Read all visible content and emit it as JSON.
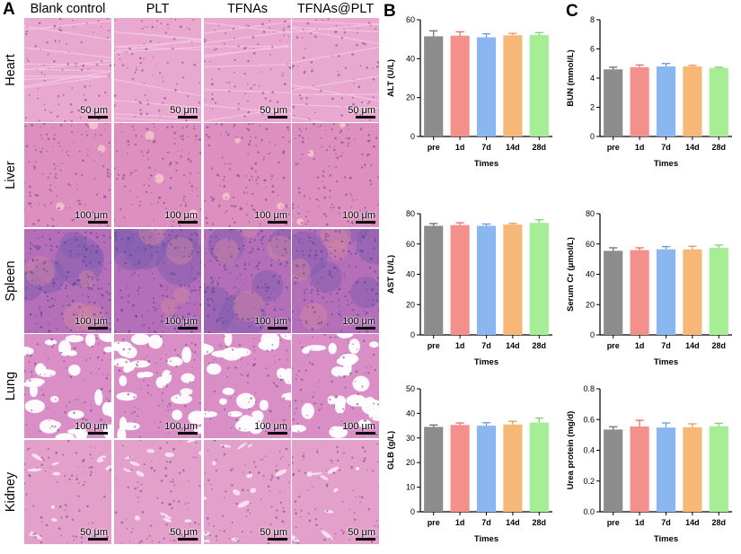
{
  "panels": {
    "a": "A",
    "b": "B",
    "c": "C"
  },
  "histology": {
    "columns": [
      "Blank control",
      "PLT",
      "TFNAs",
      "TFNAs@PLT"
    ],
    "rows": [
      {
        "label": "Heart",
        "scale": "50 μm",
        "tissue": "heart",
        "color": "#e9a8cf"
      },
      {
        "label": "Liver",
        "scale": "100 μm",
        "tissue": "liver",
        "color": "#dd8fc0"
      },
      {
        "label": "Spleen",
        "scale": "100 μm",
        "tissue": "spleen",
        "color": "#b46fb8"
      },
      {
        "label": "Lung",
        "scale": "100 μm",
        "tissue": "lung",
        "color": "#d98fc6"
      },
      {
        "label": "Kidney",
        "scale": "50 μm",
        "tissue": "kidney",
        "color": "#e3a0cb"
      }
    ]
  },
  "chart_data": [
    {
      "id": "alt",
      "type": "bar",
      "title": "",
      "xlabel": "Times",
      "ylabel": "ALT (U/L)",
      "categories": [
        "pre",
        "1d",
        "7d",
        "14d",
        "28d"
      ],
      "values": [
        51.5,
        51.8,
        51.0,
        52.0,
        52.2
      ],
      "errors": [
        2.8,
        2.0,
        1.8,
        1.0,
        1.2
      ],
      "ylim": [
        0,
        60
      ],
      "yticks": [
        0,
        20,
        40,
        60
      ],
      "tick_labels": [
        "0",
        "20",
        "40",
        "60"
      ]
    },
    {
      "id": "bun",
      "type": "bar",
      "title": "",
      "xlabel": "Times",
      "ylabel": "BUN (mmol/L)",
      "categories": [
        "pre",
        "1d",
        "7d",
        "14d",
        "28d"
      ],
      "values": [
        4.6,
        4.75,
        4.8,
        4.8,
        4.7
      ],
      "errors": [
        0.15,
        0.15,
        0.2,
        0.08,
        0.05
      ],
      "ylim": [
        0,
        8
      ],
      "yticks": [
        0,
        2,
        4,
        6,
        8
      ],
      "tick_labels": [
        "0",
        "2",
        "4",
        "6",
        "8"
      ]
    },
    {
      "id": "ast",
      "type": "bar",
      "title": "",
      "xlabel": "Times",
      "ylabel": "AST (U/L)",
      "categories": [
        "pre",
        "1d",
        "7d",
        "14d",
        "28d"
      ],
      "values": [
        72.0,
        72.5,
        72.0,
        72.8,
        74.0
      ],
      "errors": [
        1.5,
        1.5,
        1.2,
        0.8,
        2.0
      ],
      "ylim": [
        0,
        80
      ],
      "yticks": [
        0,
        20,
        40,
        60,
        80
      ],
      "tick_labels": [
        "0",
        "20",
        "40",
        "60",
        "80"
      ]
    },
    {
      "id": "cr",
      "type": "bar",
      "title": "",
      "xlabel": "Times",
      "ylabel": "Serum Cr (μmol/L)",
      "categories": [
        "pre",
        "1d",
        "7d",
        "14d",
        "28d"
      ],
      "values": [
        55.5,
        56.0,
        56.5,
        56.5,
        57.5
      ],
      "errors": [
        2.0,
        1.5,
        1.8,
        2.0,
        1.8
      ],
      "ylim": [
        0,
        80
      ],
      "yticks": [
        0,
        20,
        40,
        60,
        80
      ],
      "tick_labels": [
        "0",
        "20",
        "40",
        "60",
        "80"
      ]
    },
    {
      "id": "glb",
      "type": "bar",
      "title": "",
      "xlabel": "Times",
      "ylabel": "GLB (g/L)",
      "categories": [
        "pre",
        "1d",
        "7d",
        "14d",
        "28d"
      ],
      "values": [
        34.5,
        35.3,
        35.0,
        35.5,
        36.3
      ],
      "errors": [
        0.8,
        0.8,
        1.2,
        1.3,
        1.8
      ],
      "ylim": [
        0,
        50
      ],
      "yticks": [
        0,
        10,
        20,
        30,
        40,
        50
      ],
      "tick_labels": [
        "0",
        "10",
        "20",
        "30",
        "40",
        "50"
      ]
    },
    {
      "id": "up",
      "type": "bar",
      "title": "",
      "xlabel": "Times",
      "ylabel": "Urea protein (mg/d)",
      "categories": [
        "pre",
        "1d",
        "7d",
        "14d",
        "28d"
      ],
      "values": [
        0.535,
        0.555,
        0.548,
        0.55,
        0.556
      ],
      "errors": [
        0.018,
        0.04,
        0.03,
        0.022,
        0.02
      ],
      "ylim": [
        0,
        0.8
      ],
      "yticks": [
        0,
        0.2,
        0.4,
        0.6,
        0.8
      ],
      "tick_labels": [
        "0.0",
        "0.2",
        "0.4",
        "0.6",
        "0.8"
      ]
    }
  ],
  "bar_colors": [
    "#8c8c8c",
    "#f4908c",
    "#8ab7f0",
    "#f7b776",
    "#a6ee96"
  ],
  "error_colors": [
    "#6e6e6e",
    "#e0706c",
    "#6a98d8",
    "#e09a58",
    "#80d070"
  ]
}
